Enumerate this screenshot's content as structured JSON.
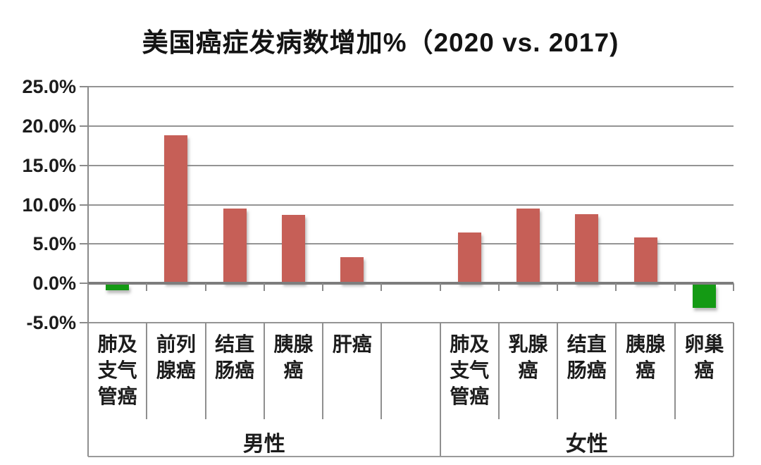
{
  "title": "美国癌症发病数增加%（2020 vs. 2017)",
  "colors": {
    "increase_bar": "#c65f57",
    "decrease_bar": "#149a14",
    "gridline": "#949494",
    "axis": "#7d7d7d",
    "text": "#1c1c1c"
  },
  "chart_data": {
    "type": "bar",
    "title": "美国癌症发病数增加%（2020 vs. 2017)",
    "xlabel": "",
    "ylabel": "",
    "ylim": [
      -5,
      25
    ],
    "ytick_step": 5,
    "ytick_labels": [
      "25.0%",
      "20.0%",
      "15.0%",
      "10.0%",
      "5.0%",
      "0.0%",
      "-5.0%"
    ],
    "ytick_values": [
      25,
      20,
      15,
      10,
      5,
      0,
      -5
    ],
    "grid": true,
    "legend": "none",
    "bar_color_positive": "#c65f57",
    "bar_color_negative": "#149a14",
    "groups": [
      {
        "label": "男性",
        "categories": [
          "肺及支气管癌",
          "前列腺癌",
          "结直肠癌",
          "胰腺癌",
          "肝癌"
        ],
        "values": [
          -0.7,
          18.8,
          9.5,
          8.7,
          3.3
        ]
      },
      {
        "label": "女性",
        "categories": [
          "肺及支气管癌",
          "乳腺癌",
          "结直肠癌",
          "胰腺癌",
          "卵巢癌"
        ],
        "values": [
          6.5,
          9.5,
          8.8,
          5.8,
          -2.9
        ]
      }
    ]
  }
}
